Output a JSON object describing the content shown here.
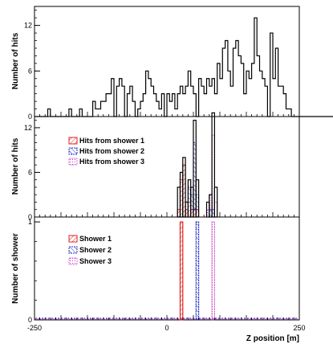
{
  "colors": {
    "total": "#000000",
    "shower1": "#e02020",
    "shower2": "#2030c0",
    "shower3": "#cc33cc"
  },
  "xlabel": "Z position [m]",
  "xaxis": {
    "range": [
      -250,
      250
    ],
    "ticks": [
      -250,
      0,
      250
    ],
    "tick_labels": [
      "-250",
      "0",
      "250"
    ]
  },
  "chart_data": [
    {
      "type": "bar",
      "panel": "top",
      "ylabel": "Number of hits",
      "ylim": [
        0,
        14.5
      ],
      "yticks": [
        0,
        6,
        12
      ],
      "bin_width": 5,
      "x_start": -250,
      "series": [
        {
          "values": [
            0,
            0,
            0,
            0,
            0,
            1,
            0,
            0,
            0,
            0,
            0,
            0,
            0,
            1,
            0,
            0,
            0,
            1,
            0,
            0,
            0,
            0,
            2,
            1,
            1,
            2,
            2,
            3,
            3,
            5,
            0,
            4,
            5,
            4,
            0,
            3,
            4,
            2,
            0,
            1,
            2,
            3,
            6,
            5,
            4,
            3,
            2,
            1,
            3,
            0,
            3,
            2,
            3,
            1,
            3,
            4,
            3,
            4,
            6,
            4,
            3,
            0,
            5,
            4,
            3,
            5,
            4,
            5,
            3,
            7,
            5,
            9,
            10,
            6,
            4,
            9,
            10,
            8,
            7,
            3,
            6,
            5,
            7,
            13,
            8,
            6,
            5,
            4,
            0,
            11,
            5,
            9,
            4,
            4,
            3,
            1,
            1,
            0,
            0,
            0,
            0,
            0,
            0,
            0,
            0,
            0,
            0,
            0,
            0,
            0,
            0,
            0,
            0,
            0,
            0,
            0,
            0,
            0,
            0,
            0,
            0,
            0,
            0,
            0,
            0,
            0,
            0,
            0,
            0,
            0,
            0,
            0,
            0,
            0,
            0,
            0,
            0,
            0,
            0,
            0
          ]
        }
      ]
    },
    {
      "type": "bar",
      "panel": "middle",
      "ylabel": "Number of hits",
      "ylim": [
        0,
        13.5
      ],
      "yticks": [
        0,
        6,
        12
      ],
      "legend_position": "top-left",
      "bin_width": 5,
      "bins": [
        {
          "x": 20,
          "total": 4,
          "s1": 1,
          "s2": 0,
          "s3": 0
        },
        {
          "x": 25,
          "total": 6,
          "s1": 5,
          "s2": 0,
          "s3": 0
        },
        {
          "x": 30,
          "total": 8,
          "s1": 7,
          "s2": 0,
          "s3": 0
        },
        {
          "x": 35,
          "total": 2,
          "s1": 1,
          "s2": 0,
          "s3": 0
        },
        {
          "x": 40,
          "total": 5,
          "s1": 2,
          "s2": 2,
          "s3": 0
        },
        {
          "x": 45,
          "total": 4,
          "s1": 1,
          "s2": 2,
          "s3": 0
        },
        {
          "x": 50,
          "total": 13,
          "s1": 1,
          "s2": 9,
          "s3": 0
        },
        {
          "x": 55,
          "total": 5,
          "s1": 1,
          "s2": 2,
          "s3": 0
        },
        {
          "x": 75,
          "total": 2,
          "s1": 0,
          "s2": 0,
          "s3": 1
        },
        {
          "x": 80,
          "total": 3,
          "s1": 0,
          "s2": 1,
          "s3": 2
        },
        {
          "x": 85,
          "total": 14,
          "s1": 0,
          "s2": 1,
          "s3": 10
        },
        {
          "x": 90,
          "total": 4,
          "s1": 0,
          "s2": 0,
          "s3": 2
        }
      ],
      "legend": [
        "Hits from shower 1",
        "Hits from shower 2",
        "Hits from shower 3"
      ]
    },
    {
      "type": "bar",
      "panel": "bottom",
      "ylabel": "Number of shower",
      "ylim": [
        0,
        1.05
      ],
      "yticks": [
        0,
        1
      ],
      "legend_position": "top-left",
      "bars": [
        {
          "x": 25,
          "width": 5,
          "value": 1,
          "series": "s1"
        },
        {
          "x": 55,
          "width": 5,
          "value": 1,
          "series": "s2"
        },
        {
          "x": 85,
          "width": 5,
          "value": 1,
          "series": "s3"
        }
      ],
      "legend": [
        "Shower 1",
        "Shower 2",
        "Shower 3"
      ]
    }
  ]
}
